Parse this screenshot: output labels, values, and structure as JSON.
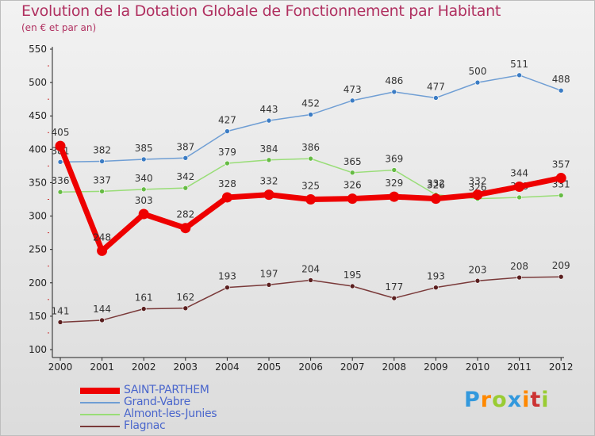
{
  "title": "Evolution de la Dotation Globale de Fonctionnement par Habitant",
  "subtitle": "(en € et par an)",
  "brand": "Proxiti",
  "chart_data": {
    "type": "line",
    "x": [
      "2000",
      "2001",
      "2002",
      "2003",
      "2004",
      "2005",
      "2006",
      "2007",
      "2008",
      "2009",
      "2010",
      "2011",
      "2012"
    ],
    "yticks": [
      100,
      150,
      200,
      250,
      300,
      350,
      400,
      450,
      500,
      550
    ],
    "ylim": [
      100,
      550
    ],
    "grid": false,
    "legend_position": "bottom-left",
    "series": [
      {
        "name": "Grand-Vabre",
        "color": "#6f9ed4",
        "marker": "#3b7cc4",
        "values": [
          381,
          382,
          385,
          387,
          427,
          443,
          452,
          473,
          486,
          477,
          500,
          511,
          488
        ]
      },
      {
        "name": "Almont-les-Junies",
        "color": "#99dd77",
        "marker": "#66bb44",
        "values": [
          336,
          337,
          340,
          342,
          379,
          384,
          386,
          365,
          369,
          332,
          326,
          328,
          331
        ]
      },
      {
        "name": "Flagnac",
        "color": "#7a3a3a",
        "marker": "#5a1f1f",
        "values": [
          141,
          144,
          161,
          162,
          193,
          197,
          204,
          195,
          177,
          193,
          203,
          208,
          209
        ]
      },
      {
        "name": "SAINT-PARTHEM",
        "color": "#ee0000",
        "marker": "#ee0000",
        "values": [
          405,
          248,
          303,
          282,
          328,
          332,
          325,
          326,
          329,
          326,
          332,
          344,
          357
        ]
      }
    ]
  },
  "legend": [
    {
      "name": "SAINT-PARTHEM",
      "color": "#ee0000",
      "thickness": 8
    },
    {
      "name": "Grand-Vabre",
      "color": "#6f9ed4",
      "thickness": 2
    },
    {
      "name": "Almont-les-Junies",
      "color": "#99dd77",
      "thickness": 2
    },
    {
      "name": "Flagnac",
      "color": "#7a3a3a",
      "thickness": 2
    }
  ]
}
